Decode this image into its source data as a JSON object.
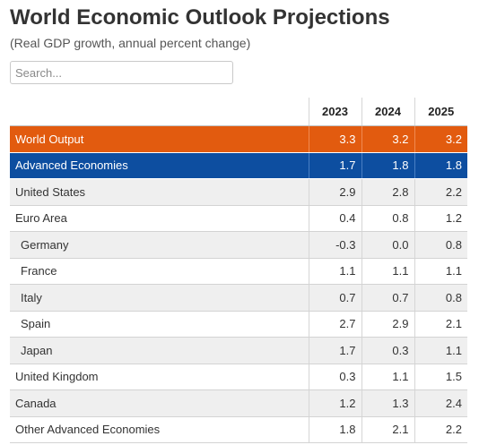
{
  "page": {
    "title": "World Economic Outlook Projections",
    "subtitle": "(Real GDP growth, annual percent change)"
  },
  "search": {
    "placeholder": "Search..."
  },
  "table": {
    "columns": [
      "2023",
      "2024",
      "2025"
    ],
    "rows": [
      {
        "label": "World Output",
        "values": [
          "3.3",
          "3.2",
          "3.2"
        ],
        "style": "world"
      },
      {
        "label": "Advanced Economies",
        "values": [
          "1.7",
          "1.8",
          "1.8"
        ],
        "style": "adv"
      },
      {
        "label": "United States",
        "values": [
          "2.9",
          "2.8",
          "2.2"
        ],
        "style": "shade"
      },
      {
        "label": "Euro Area",
        "values": [
          "0.4",
          "0.8",
          "1.2"
        ],
        "style": "white"
      },
      {
        "label": "Germany",
        "values": [
          "-0.3",
          "0.0",
          "0.8"
        ],
        "style": "shade",
        "indent": true
      },
      {
        "label": "France",
        "values": [
          "1.1",
          "1.1",
          "1.1"
        ],
        "style": "white",
        "indent": true
      },
      {
        "label": "Italy",
        "values": [
          "0.7",
          "0.7",
          "0.8"
        ],
        "style": "shade",
        "indent": true
      },
      {
        "label": "Spain",
        "values": [
          "2.7",
          "2.9",
          "2.1"
        ],
        "style": "white",
        "indent": true
      },
      {
        "label": "Japan",
        "values": [
          "1.7",
          "0.3",
          "1.1"
        ],
        "style": "shade",
        "indent": true
      },
      {
        "label": "United Kingdom",
        "values": [
          "0.3",
          "1.1",
          "1.5"
        ],
        "style": "white"
      },
      {
        "label": "Canada",
        "values": [
          "1.2",
          "1.3",
          "2.4"
        ],
        "style": "shade"
      },
      {
        "label": "Other Advanced Economies",
        "values": [
          "1.8",
          "2.1",
          "2.2"
        ],
        "style": "white"
      }
    ]
  },
  "colors": {
    "world_output_row": "#e25b0f",
    "advanced_economies_row": "#0d4ea0",
    "shaded_row": "#efefef"
  }
}
